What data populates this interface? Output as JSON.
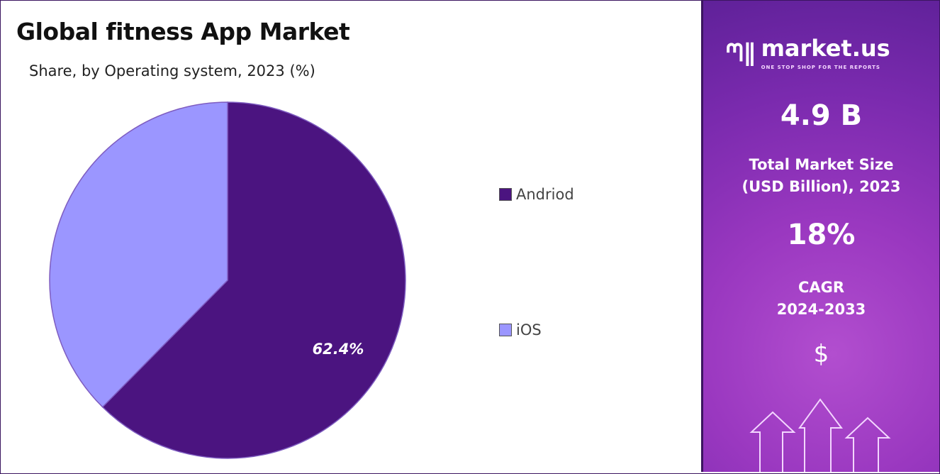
{
  "chart_data": {
    "type": "pie",
    "title": "Global fitness App Market",
    "subtitle": "Share, by Operating system, 2023 (%)",
    "categories": [
      "Andriod",
      "iOS"
    ],
    "values": [
      62.4,
      37.6
    ],
    "colors": [
      "#4b1480",
      "#9b96ff"
    ],
    "data_labels": [
      "62.4%",
      ""
    ],
    "legend_position": "right"
  },
  "side_panel": {
    "brand": "market.us",
    "tagline": "ONE STOP SHOP FOR THE REPORTS",
    "market_size": "4.9 B",
    "market_size_label_1": "Total Market Size",
    "market_size_label_2": "(USD Billion), 2023",
    "cagr": "18%",
    "cagr_label_1": "CAGR",
    "cagr_label_2": "2024-2033",
    "dollar_symbol": "$"
  }
}
